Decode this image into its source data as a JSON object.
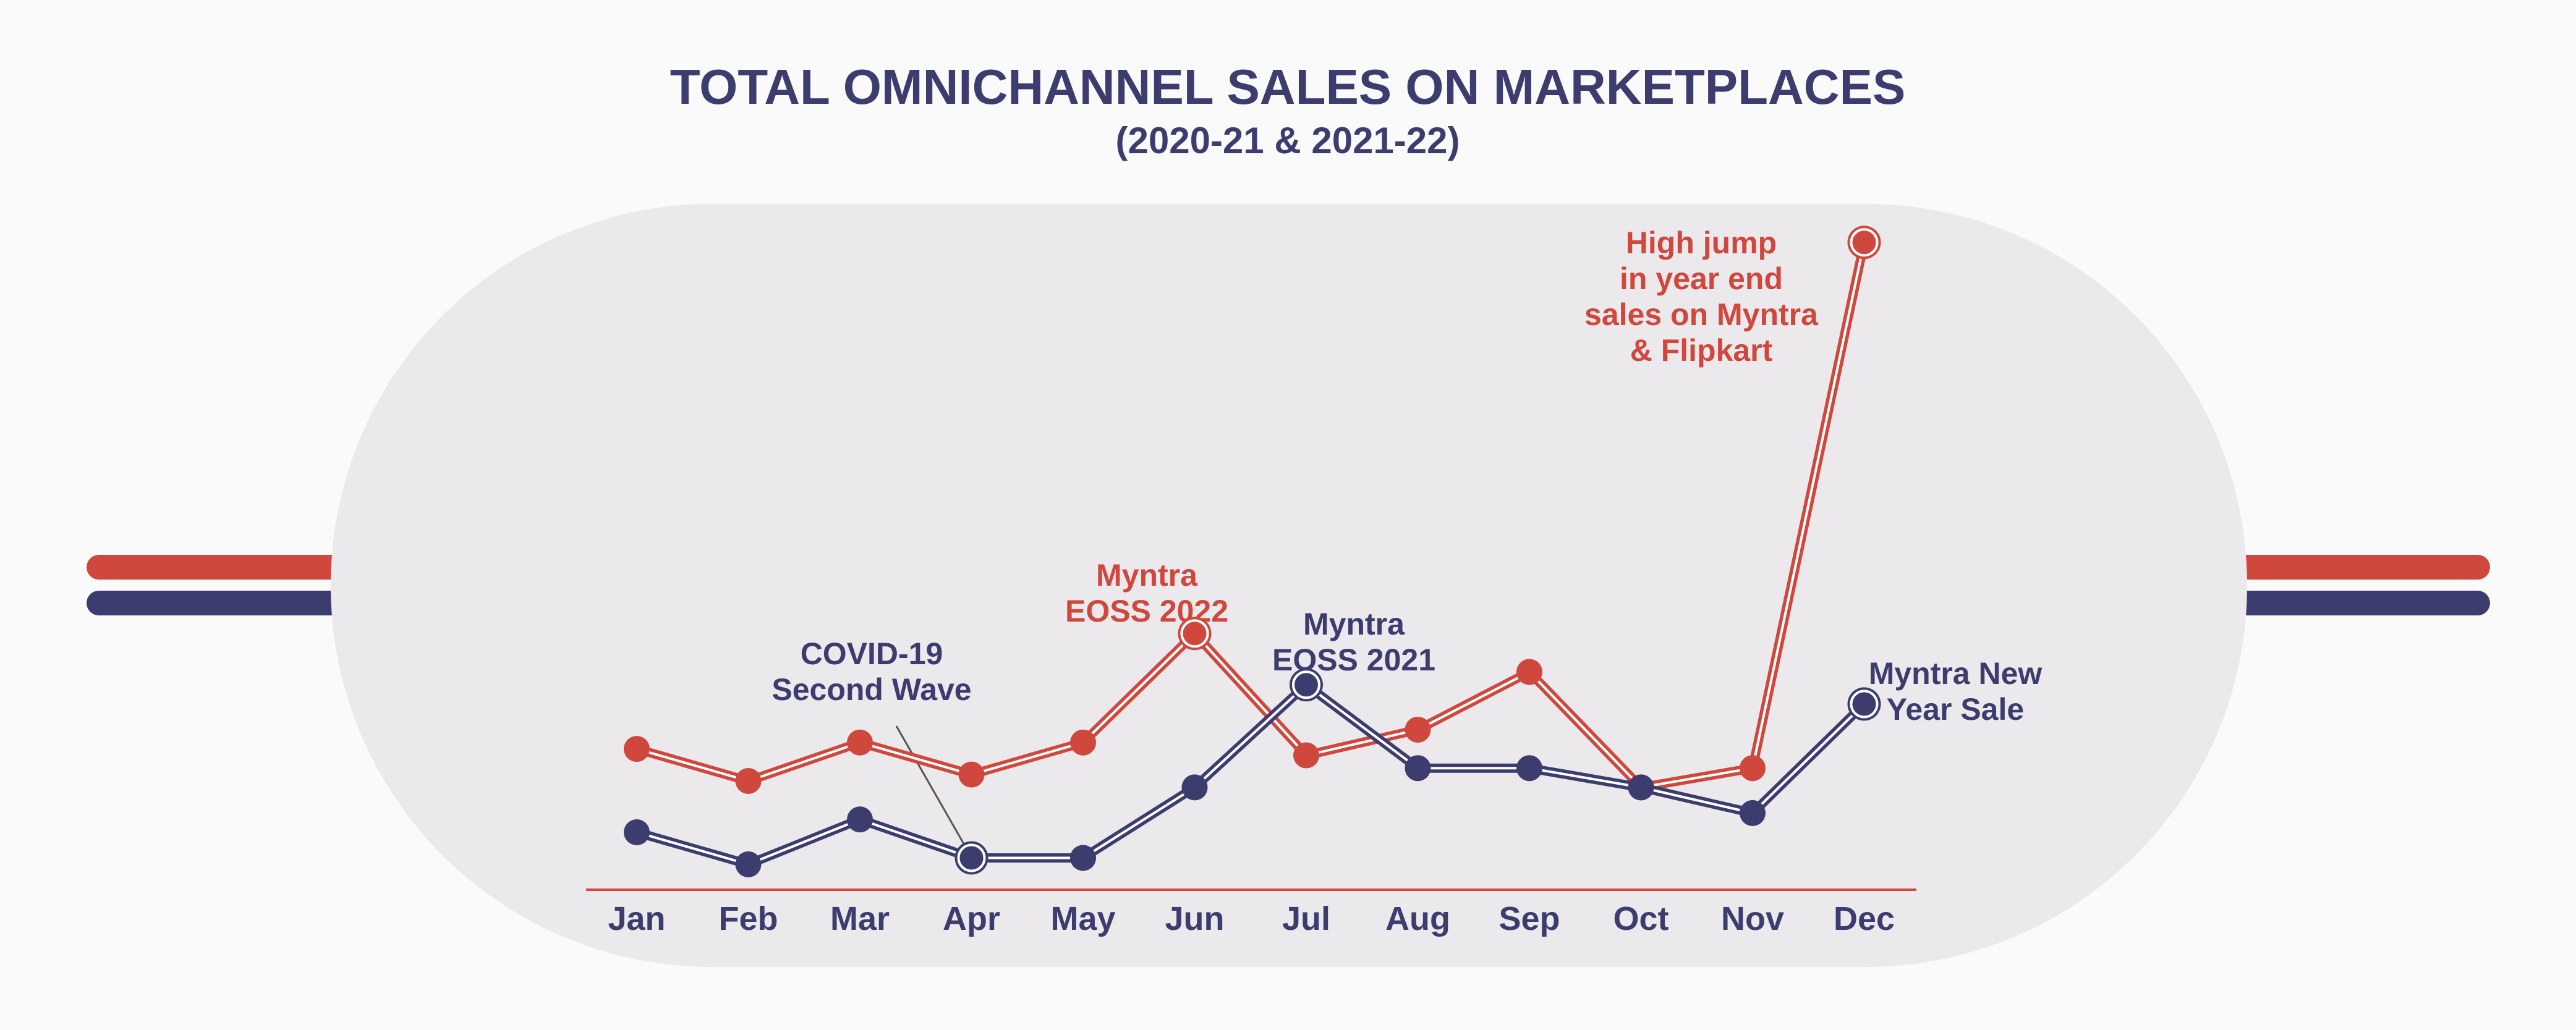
{
  "chart_data": {
    "type": "line",
    "title": "TOTAL OMNICHANNEL SALES ON MARKETPLACES",
    "subtitle": "(2020-21 & 2021-22)",
    "categories": [
      "Jan",
      "Feb",
      "Mar",
      "Apr",
      "May",
      "Jun",
      "Jul",
      "Aug",
      "Sep",
      "Oct",
      "Nov",
      "Dec"
    ],
    "ylim": [
      0,
      10.6
    ],
    "grid": false,
    "legend": "none",
    "series": [
      {
        "name": "2021-22",
        "color": "#d0473d",
        "values": [
          2.1,
          1.6,
          2.2,
          1.7,
          2.2,
          3.9,
          2.0,
          2.4,
          3.3,
          1.5,
          1.8,
          10.0
        ],
        "highlighted": [
          "Jun",
          "Dec"
        ]
      },
      {
        "name": "2020-21",
        "color": "#3d3c6e",
        "values": [
          0.8,
          0.3,
          1.0,
          0.4,
          0.4,
          1.5,
          3.1,
          1.8,
          1.8,
          1.5,
          1.1,
          2.8
        ],
        "highlighted": [
          "Apr",
          "Jul",
          "Dec"
        ]
      }
    ],
    "annotations": [
      {
        "lines": [
          "COVID-19",
          "Second Wave"
        ],
        "series": "2020-21",
        "category": "Apr",
        "color": "#3d3c6e"
      },
      {
        "lines": [
          "Myntra",
          "EOSS 2022"
        ],
        "series": "2021-22",
        "category": "Jun",
        "color": "#d0473d"
      },
      {
        "lines": [
          "Myntra",
          "EOSS 2021"
        ],
        "series": "2020-21",
        "category": "Jul",
        "color": "#3d3c6e"
      },
      {
        "lines": [
          "High jump",
          "in year end",
          "sales on Myntra",
          "& Flipkart"
        ],
        "series": "2021-22",
        "category": "Dec",
        "color": "#d0473d"
      },
      {
        "lines": [
          "Myntra New",
          "Year Sale"
        ],
        "series": "2020-21",
        "category": "Dec",
        "color": "#3d3c6e"
      }
    ]
  }
}
